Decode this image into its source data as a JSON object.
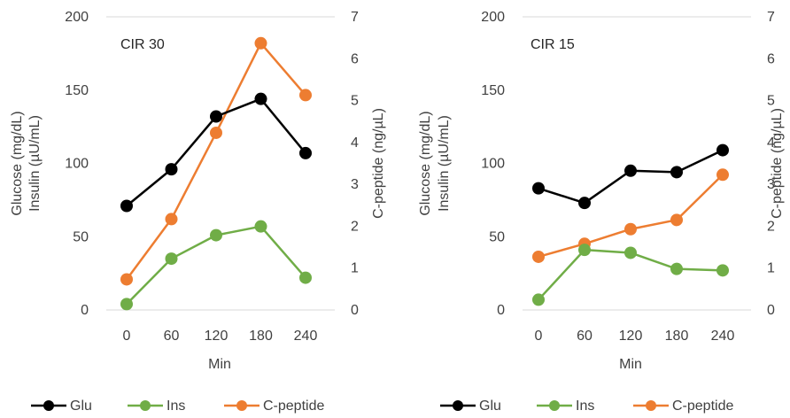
{
  "chart_data": [
    {
      "type": "line",
      "title": "",
      "annotation": "CIR 30",
      "xlabel": "Min",
      "ylabel_left": [
        "Glucose (mg/dL)",
        "Insulin (µU/mL)"
      ],
      "ylabel_right": "C-peptide (ng/µL)",
      "categories": [
        "0",
        "60",
        "120",
        "180",
        "240"
      ],
      "ylim_left": [
        0,
        200
      ],
      "yticks_left": [
        "0",
        "50",
        "100",
        "150",
        "200"
      ],
      "ylim_right": [
        0,
        7
      ],
      "yticks_right": [
        "0",
        "1",
        "2",
        "3",
        "4",
        "5",
        "6",
        "7"
      ],
      "grid": "horizontal at top only",
      "legend_position": "bottom",
      "series": [
        {
          "name": "Glu",
          "axis": "left",
          "color": "#000000",
          "values": [
            71,
            96,
            132,
            144,
            107
          ]
        },
        {
          "name": "Ins",
          "axis": "left",
          "color": "#70ad47",
          "values": [
            4,
            35,
            51,
            57,
            22
          ]
        },
        {
          "name": "C-peptide",
          "axis": "right",
          "color": "#ed7d31",
          "values": [
            0.73,
            2.17,
            4.23,
            6.37,
            5.13
          ]
        }
      ]
    },
    {
      "type": "line",
      "title": "",
      "annotation": "CIR 15",
      "xlabel": "Min",
      "ylabel_left": [
        "Glucose (mg/dL)",
        "Insulin (µU/mL)"
      ],
      "ylabel_right": "C-peptide (ng/µL)",
      "categories": [
        "0",
        "60",
        "120",
        "180",
        "240"
      ],
      "ylim_left": [
        0,
        200
      ],
      "yticks_left": [
        "0",
        "50",
        "100",
        "150",
        "200"
      ],
      "ylim_right": [
        0,
        7
      ],
      "yticks_right": [
        "0",
        "1",
        "2",
        "3",
        "4",
        "5",
        "6",
        "7"
      ],
      "grid": "horizontal at top only",
      "legend_position": "bottom",
      "series": [
        {
          "name": "Glu",
          "axis": "left",
          "color": "#000000",
          "values": [
            83,
            73,
            95,
            94,
            109
          ]
        },
        {
          "name": "Ins",
          "axis": "left",
          "color": "#70ad47",
          "values": [
            7,
            41,
            39,
            28,
            27
          ]
        },
        {
          "name": "C-peptide",
          "axis": "right",
          "color": "#ed7d31",
          "values": [
            1.27,
            1.58,
            1.93,
            2.15,
            3.23
          ]
        }
      ]
    }
  ]
}
